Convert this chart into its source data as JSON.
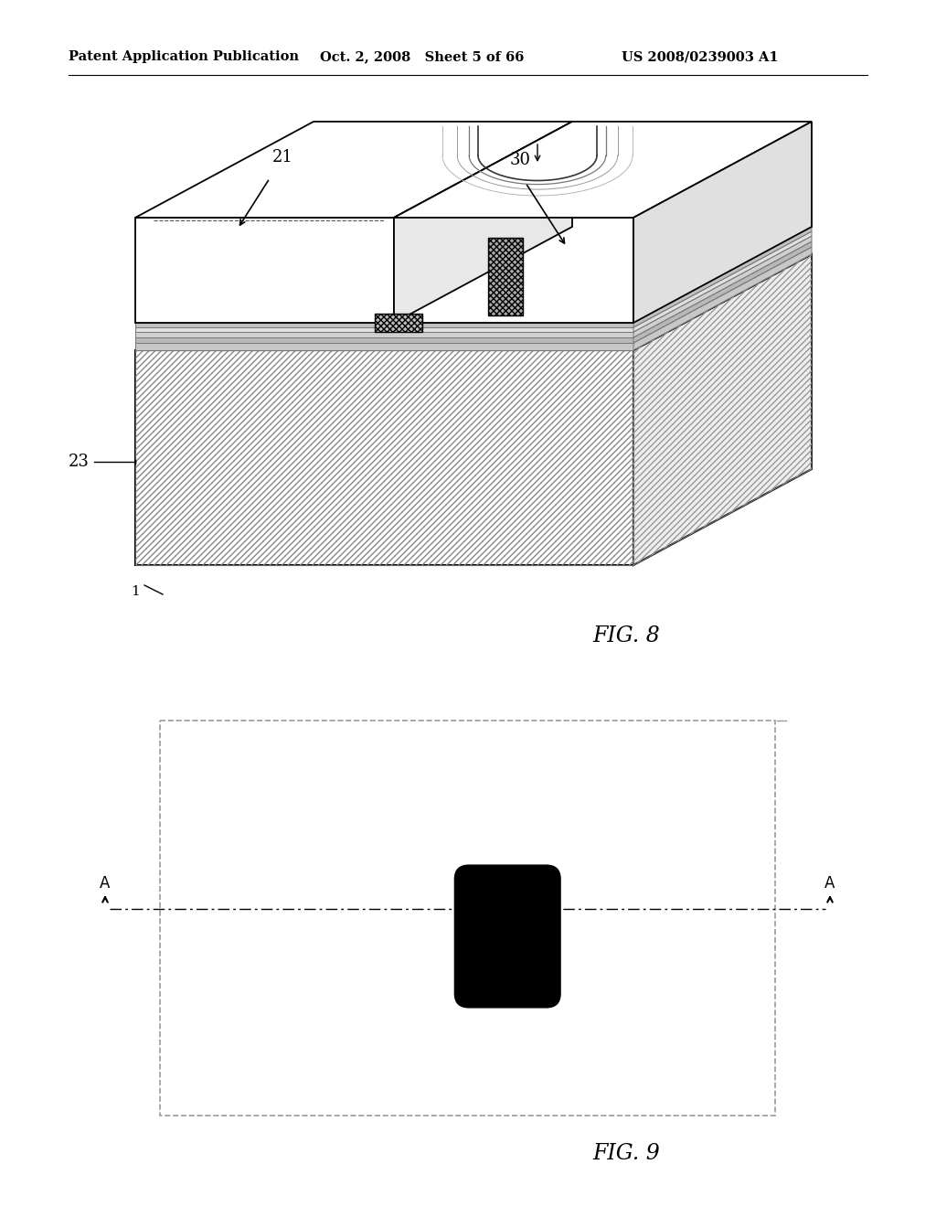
{
  "header_left": "Patent Application Publication",
  "header_center": "Oct. 2, 2008   Sheet 5 of 66",
  "header_right": "US 2008/0239003 A1",
  "bg_color": "#ffffff",
  "fig8_label": "FIG. 8",
  "fig9_label": "FIG. 9",
  "label_21": "21",
  "label_23": "23",
  "label_30": "30"
}
